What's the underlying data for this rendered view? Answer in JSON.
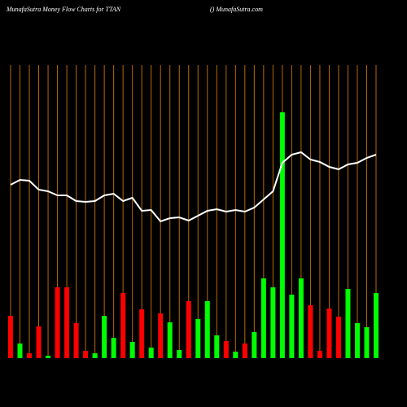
{
  "chart_data": {
    "type": "money-flow",
    "title": "MunafaSutra  Money Flow  Charts for TTAN",
    "subtitle": "() MunafaSutra.com",
    "ylim": [
      0,
      360
    ],
    "series": [
      {
        "name": "flow",
        "values": [
          52,
          18,
          6,
          39,
          3,
          87,
          87,
          43,
          9,
          6,
          52,
          25,
          80,
          20,
          60,
          13,
          55,
          44,
          10,
          70,
          48,
          70,
          28,
          21,
          8,
          18,
          32,
          98,
          87,
          302,
          78,
          98,
          65,
          9,
          61,
          51,
          85,
          43,
          38,
          80
        ],
        "colors": [
          "#ff0000",
          "#00ff00",
          "#ff0000",
          "#ff0000",
          "#00ff00",
          "#ff0000",
          "#ff0000",
          "#ff0000",
          "#ff0000",
          "#00ff00",
          "#00ff00",
          "#00ff00",
          "#ff0000",
          "#00ff00",
          "#ff0000",
          "#00ff00",
          "#ff0000",
          "#00ff00",
          "#00ff00",
          "#ff0000",
          "#00ff00",
          "#00ff00",
          "#00ff00",
          "#ff0000",
          "#00ff00",
          "#ff0000",
          "#00ff00",
          "#00ff00",
          "#00ff00",
          "#00ff00",
          "#00ff00",
          "#00ff00",
          "#ff0000",
          "#ff0000",
          "#ff0000",
          "#ff0000",
          "#00ff00",
          "#00ff00",
          "#00ff00",
          "#00ff00"
        ]
      },
      {
        "name": "price",
        "color": "#ffffff",
        "values": [
          213,
          219,
          218,
          207,
          205,
          200,
          200,
          193,
          192,
          193,
          200,
          202,
          193,
          197,
          181,
          182,
          168,
          172,
          173,
          169,
          175,
          181,
          183,
          180,
          182,
          180,
          185,
          195,
          205,
          240,
          250,
          253,
          244,
          241,
          235,
          232,
          238,
          240,
          246,
          250
        ]
      }
    ]
  }
}
